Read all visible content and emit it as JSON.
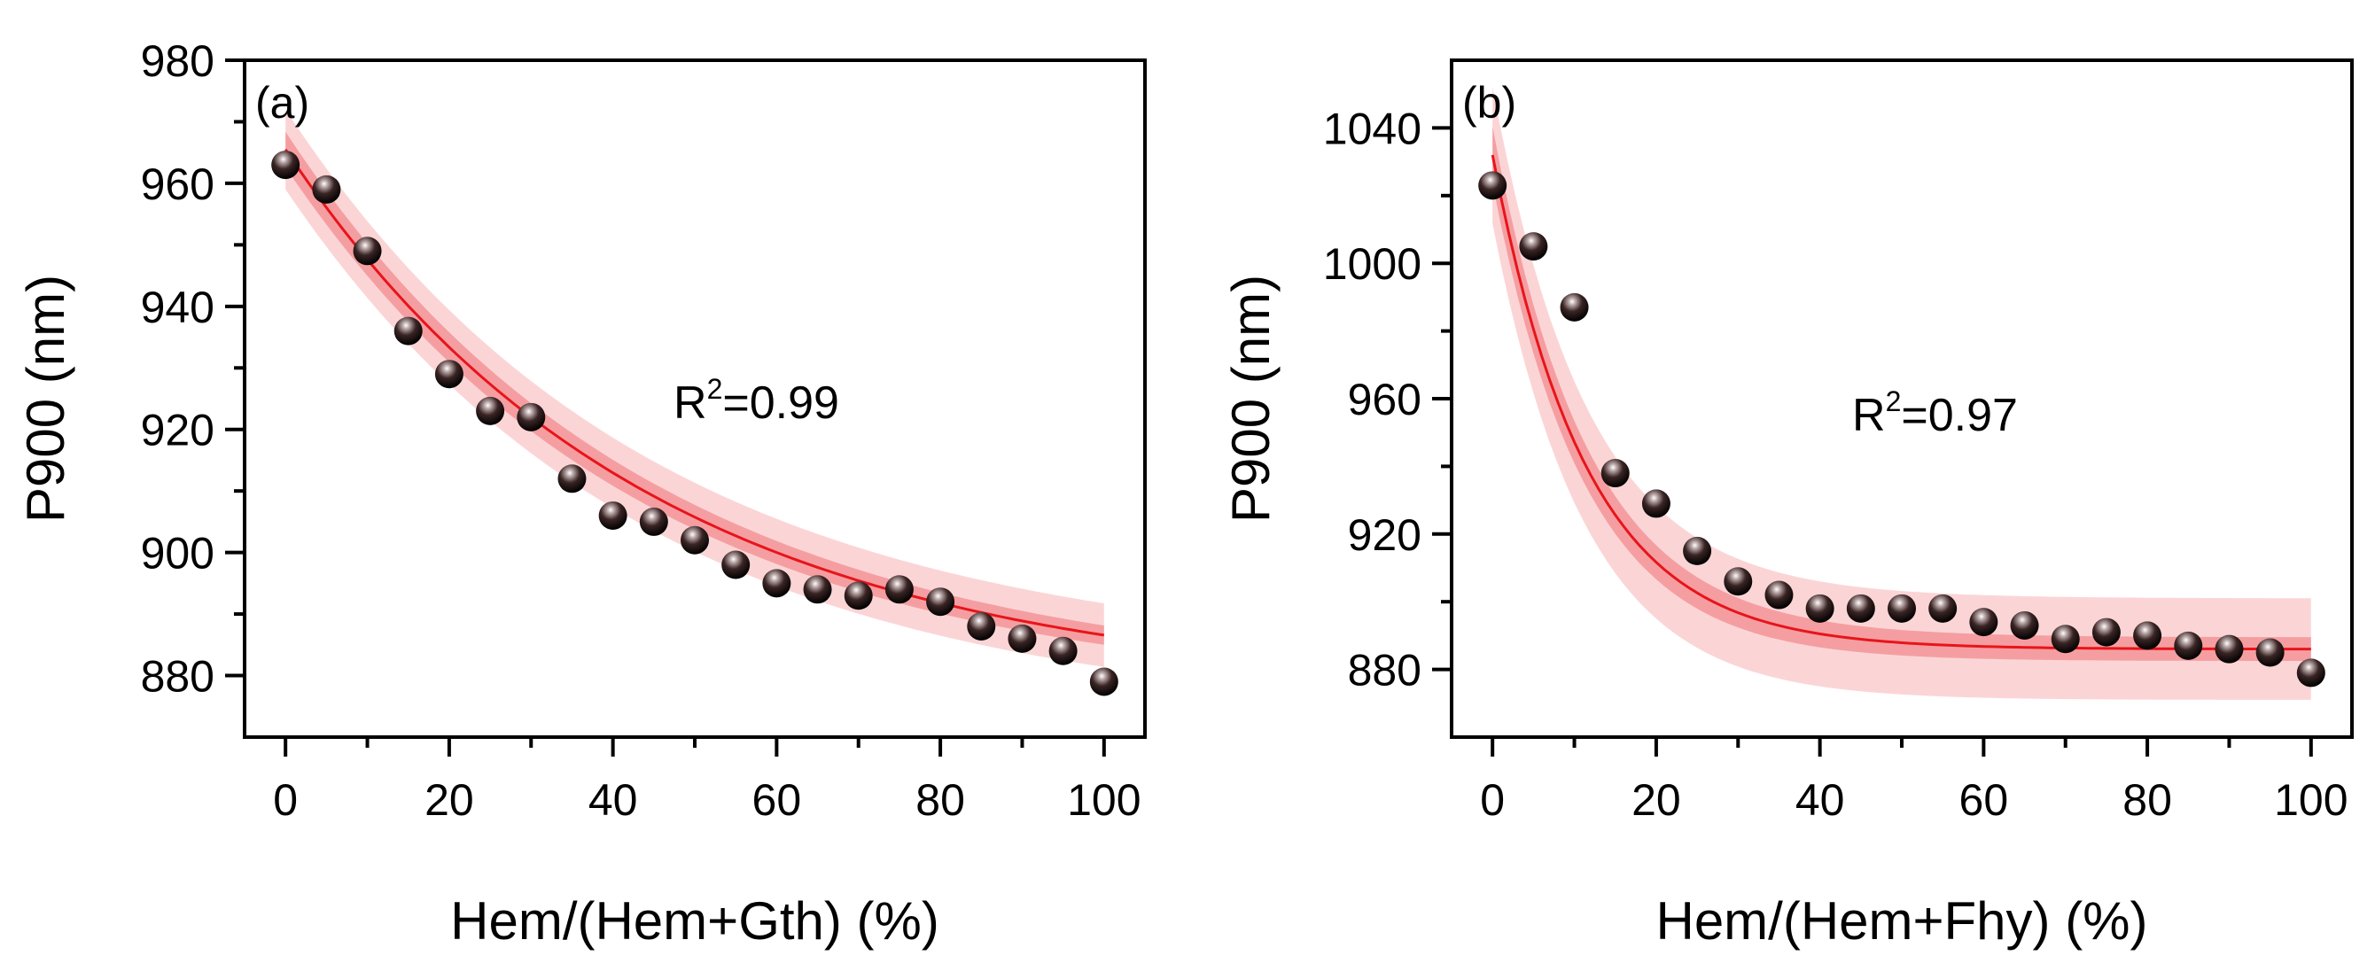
{
  "chart_data": [
    {
      "type": "scatter",
      "panel_label": "(a)",
      "xlabel": "Hem/(Hem+Gth) (%)",
      "ylabel": "P900 (nm)",
      "xlim": [
        -5,
        105
      ],
      "ylim": [
        870,
        980
      ],
      "xticks": [
        0,
        20,
        40,
        60,
        80,
        100
      ],
      "yticks": [
        880,
        900,
        920,
        940,
        960,
        980
      ],
      "annotation": {
        "prefix": "R",
        "sup": "2",
        "suffix": "=0.99"
      },
      "series": [
        {
          "name": "data",
          "x": [
            0,
            5,
            10,
            15,
            20,
            25,
            30,
            35,
            40,
            45,
            50,
            55,
            60,
            65,
            70,
            75,
            80,
            85,
            90,
            95,
            100
          ],
          "y": [
            963,
            959,
            949,
            936,
            929,
            923,
            922,
            912,
            906,
            905,
            902,
            898,
            895,
            894,
            893,
            894,
            892,
            888,
            886,
            884,
            879
          ]
        }
      ],
      "fit": {
        "model": "exponential decay",
        "y0": 877.5,
        "A": 88.0,
        "t": 44.0,
        "ci": 1.2,
        "pi": 4.8
      }
    },
    {
      "type": "scatter",
      "panel_label": "(b)",
      "xlabel": "Hem/(Hem+Fhy) (%)",
      "ylabel": "P900 (nm)",
      "xlim": [
        -5,
        105
      ],
      "ylim": [
        860,
        1060
      ],
      "xticks": [
        0,
        20,
        40,
        60,
        80,
        100
      ],
      "yticks": [
        880,
        920,
        960,
        1000,
        1040
      ],
      "annotation": {
        "prefix": "R",
        "sup": "2",
        "suffix": "=0.97"
      },
      "series": [
        {
          "name": "data",
          "x": [
            0,
            5,
            10,
            15,
            20,
            25,
            30,
            35,
            40,
            45,
            50,
            55,
            60,
            65,
            70,
            75,
            80,
            85,
            90,
            95,
            100
          ],
          "y": [
            1023,
            1005,
            987,
            938,
            929,
            915,
            906,
            902,
            898,
            898,
            898,
            898,
            894,
            893,
            889,
            891,
            890,
            887,
            886,
            885,
            879
          ]
        }
      ],
      "fit": {
        "model": "exponential decay",
        "y0": 886.0,
        "A": 146.0,
        "t": 11.5,
        "ci": 3.5,
        "pi": 15.0
      }
    }
  ]
}
